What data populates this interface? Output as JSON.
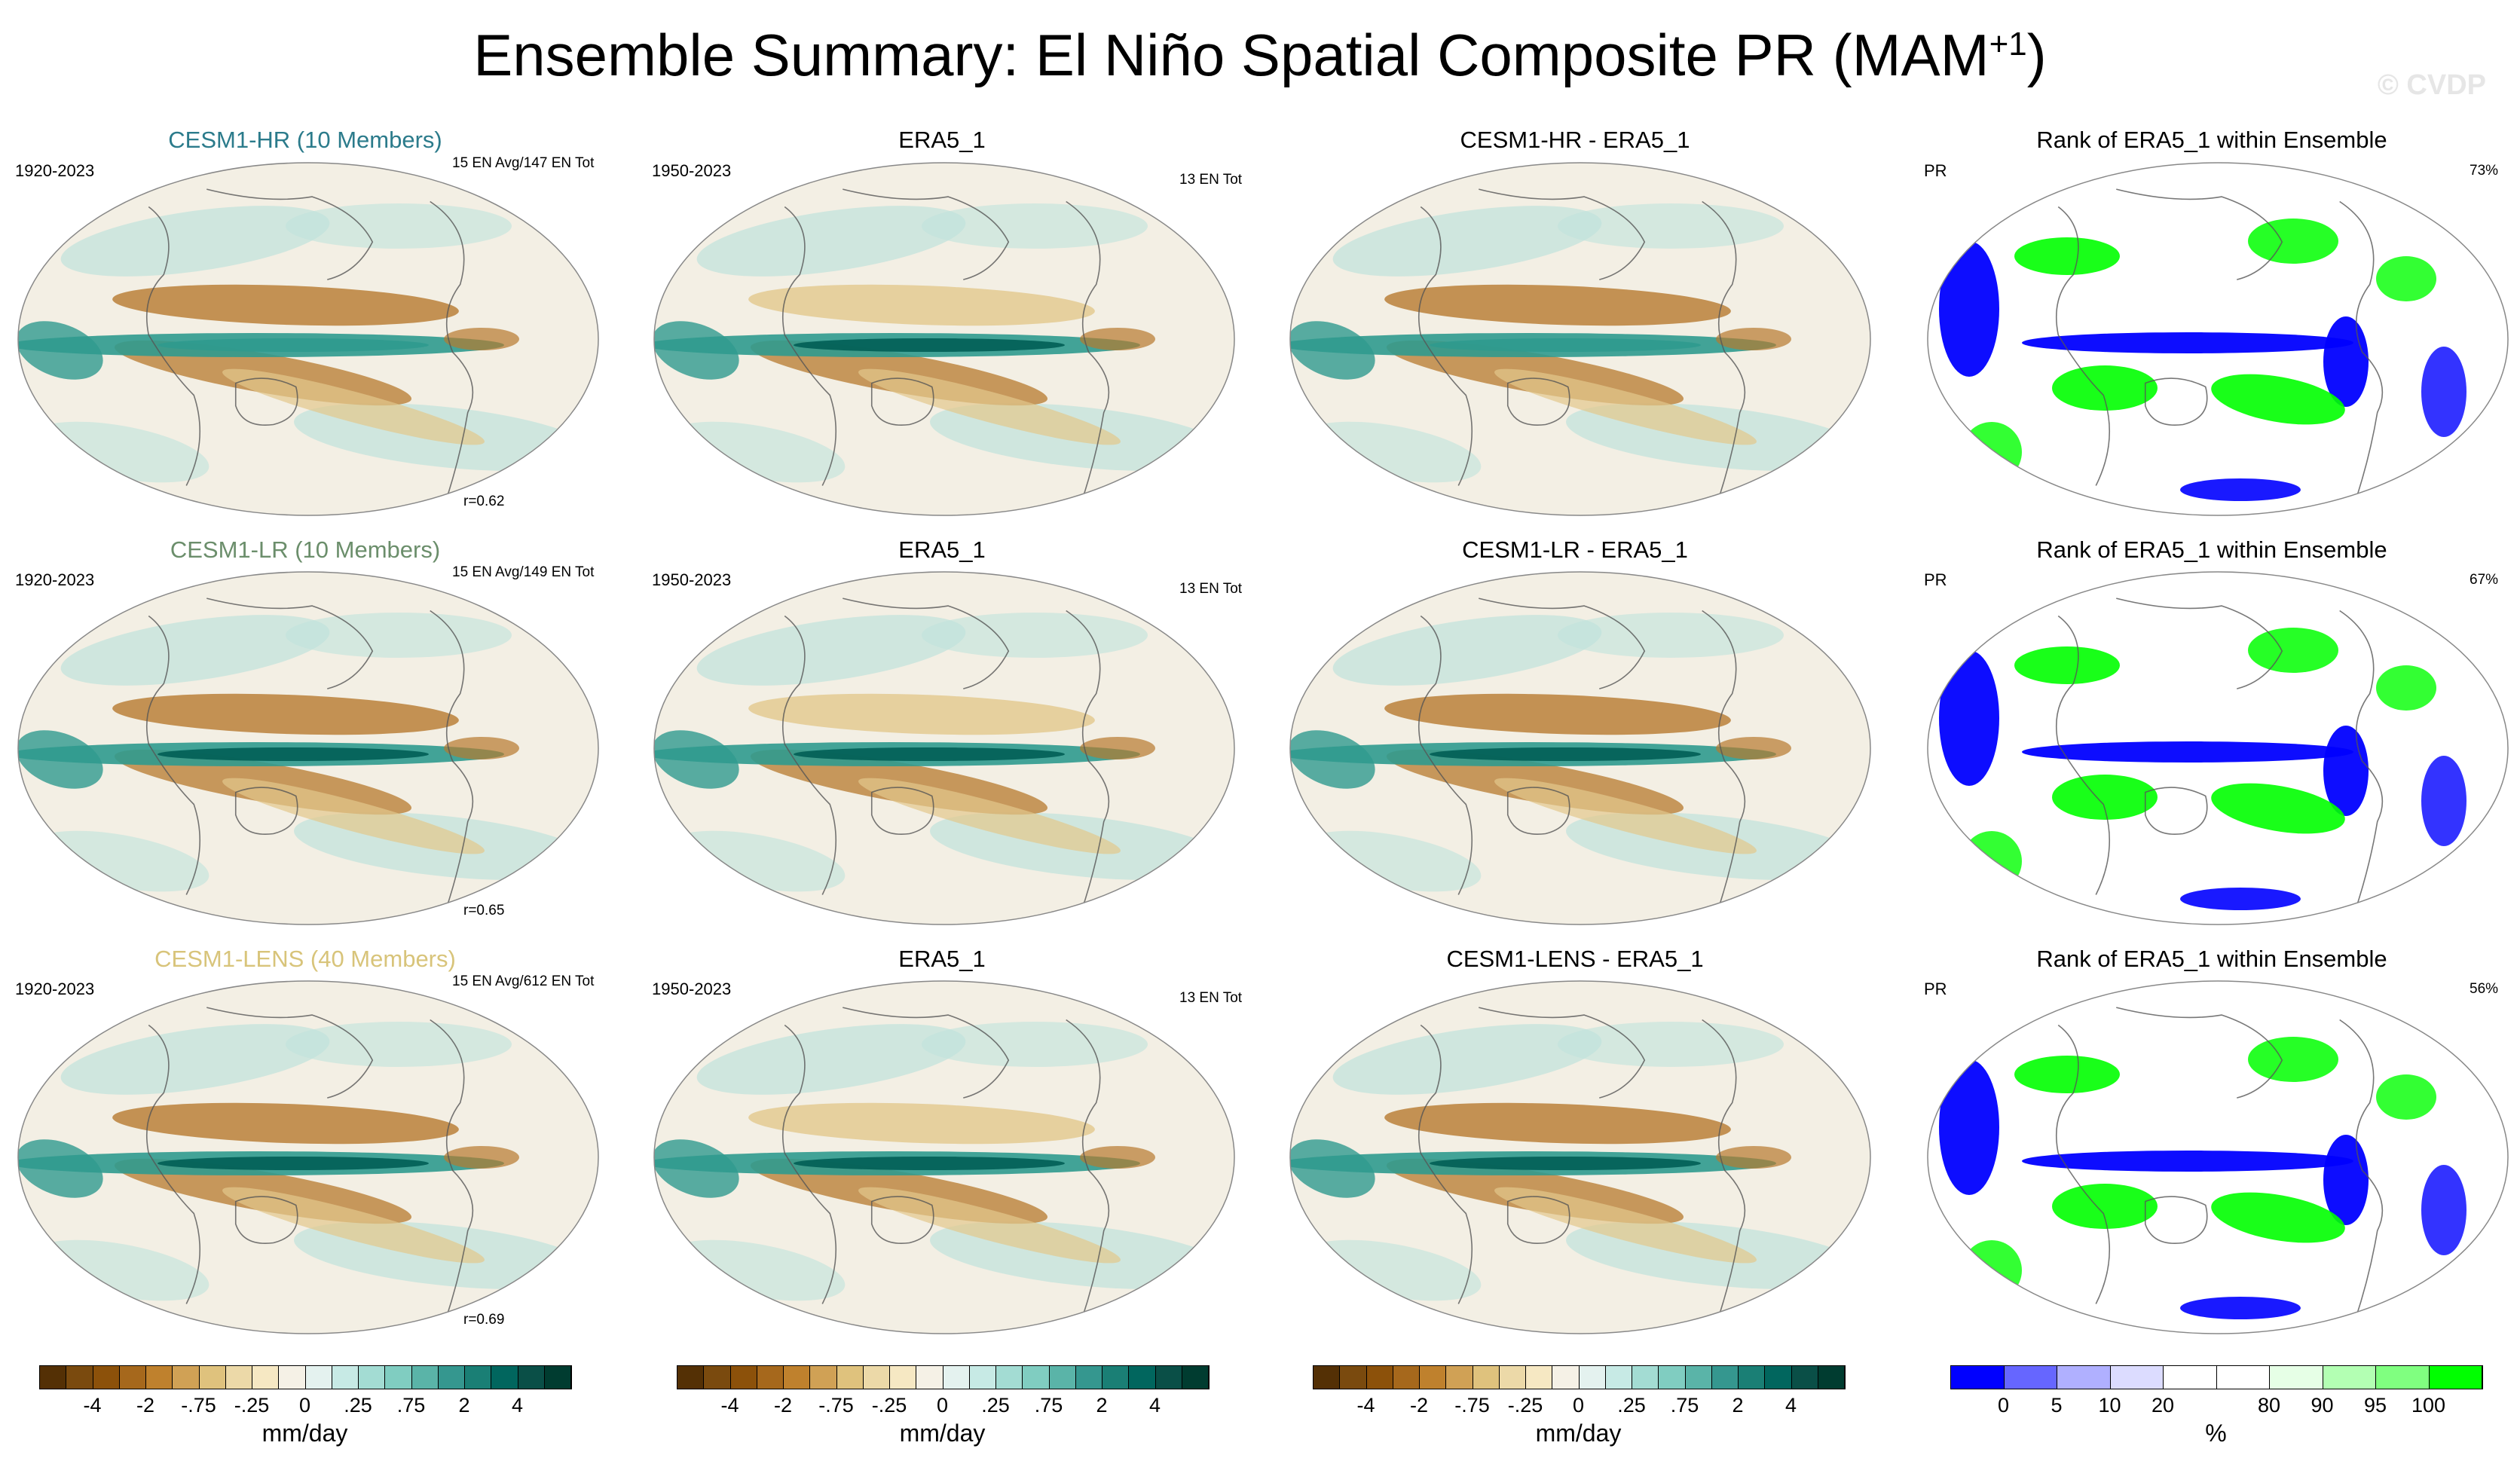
{
  "title": {
    "main": "Ensemble Summary: El Niño Spatial Composite PR (MAM",
    "sup": "+1",
    "close": ")"
  },
  "watermark": "© CVDP",
  "rows": [
    {
      "model_title": "CESM1-HR (10 Members)",
      "model_color": "#2b7b8b",
      "model_years": "1920-2023",
      "model_stats": "15 EN Avg/147 EN Tot",
      "corr": "r=0.62",
      "obs_title": "ERA5_1",
      "obs_years": "1950-2023",
      "obs_stats": "13 EN Tot",
      "diff_title": "CESM1-HR - ERA5_1",
      "rank_title": "Rank of ERA5_1 within Ensemble",
      "rank_var": "PR",
      "rank_pct": "73%"
    },
    {
      "model_title": "CESM1-LR (10 Members)",
      "model_color": "#6b8e6b",
      "model_years": "1920-2023",
      "model_stats": "15 EN Avg/149 EN Tot",
      "corr": "r=0.65",
      "obs_title": "ERA5_1",
      "obs_years": "1950-2023",
      "obs_stats": "13 EN Tot",
      "diff_title": "CESM1-LR - ERA5_1",
      "rank_title": "Rank of ERA5_1 within Ensemble",
      "rank_var": "PR",
      "rank_pct": "67%"
    },
    {
      "model_title": "CESM1-LENS (40 Members)",
      "model_color": "#d8c47a",
      "model_years": "1920-2023",
      "model_stats": "15 EN Avg/612 EN Tot",
      "corr": "r=0.69",
      "obs_title": "ERA5_1",
      "obs_years": "1950-2023",
      "obs_stats": "13 EN Tot",
      "diff_title": "CESM1-LENS - ERA5_1",
      "rank_title": "Rank of ERA5_1 within Ensemble",
      "rank_var": "PR",
      "rank_pct": "56%"
    }
  ],
  "colorbar_brbg": {
    "colors": [
      "#543005",
      "#7a4a0e",
      "#8c510a",
      "#a6681c",
      "#bf812d",
      "#d0a155",
      "#dfc27d",
      "#ecd9a8",
      "#f6e8c3",
      "#f5f1e6",
      "#e4f2ef",
      "#c7eae5",
      "#a3dcd3",
      "#80cdc1",
      "#5ab4a8",
      "#35978f",
      "#1a7f75",
      "#01665e",
      "#0a4f47",
      "#003c30"
    ],
    "labels": [
      "-4",
      "-2",
      "-.75",
      "-.25",
      "0",
      ".25",
      ".75",
      "2",
      "4"
    ],
    "units": "mm/day"
  },
  "colorbar_rank": {
    "colors": [
      "#0000ff",
      "#6666ff",
      "#b0b0ff",
      "#dcdcff",
      "#ffffff",
      "#ffffff",
      "#e6ffe6",
      "#b3ffb3",
      "#80ff80",
      "#00ff00"
    ],
    "labels": [
      "0",
      "5",
      "10",
      "20",
      "80",
      "90",
      "95",
      "100"
    ],
    "units": "%"
  }
}
